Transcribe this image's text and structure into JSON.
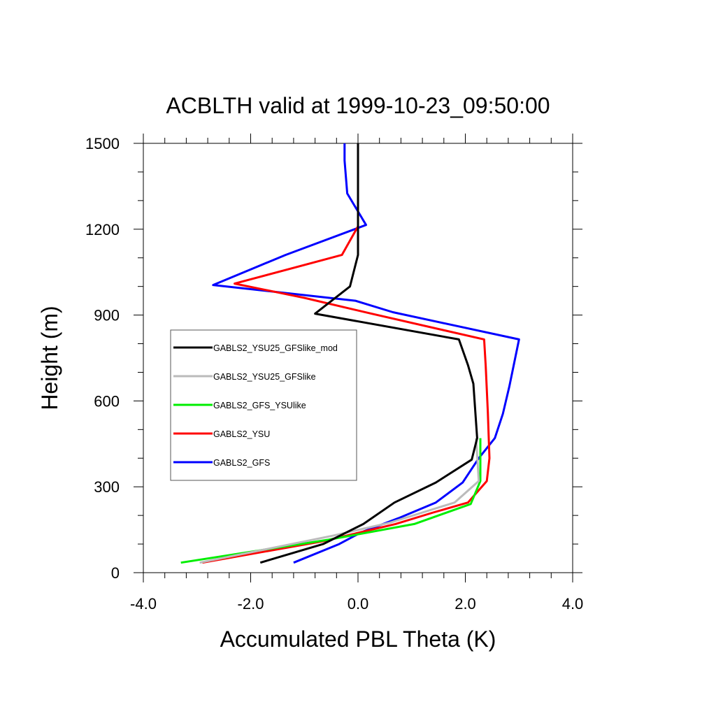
{
  "chart_data": {
    "type": "line",
    "title": "ACBLTH valid at 1999-10-23_09:50:00",
    "xlabel": "Accumulated PBL Theta (K)",
    "ylabel": "Height (m)",
    "xlim": [
      -4.0,
      4.0
    ],
    "ylim": [
      0,
      1500
    ],
    "xticks": [
      -4.0,
      -2.0,
      0.0,
      2.0,
      4.0
    ],
    "xtick_labels": [
      "-4.0",
      "-2.0",
      "0.0",
      "2.0",
      "4.0"
    ],
    "yticks": [
      0,
      300,
      600,
      900,
      1200,
      1500
    ],
    "ytick_labels": [
      "0",
      "300",
      "600",
      "900",
      "1200",
      "1500"
    ],
    "grid": false,
    "legend_position": "left-center",
    "series": [
      {
        "name": "GABLS2_GFS",
        "color": "#0000ff",
        "points": [
          [
            -1.2,
            35
          ],
          [
            -0.35,
            100
          ],
          [
            0.05,
            140
          ],
          [
            0.75,
            190
          ],
          [
            1.45,
            245
          ],
          [
            1.95,
            315
          ],
          [
            2.25,
            400
          ],
          [
            2.55,
            470
          ],
          [
            2.7,
            555
          ],
          [
            2.82,
            650
          ],
          [
            3.0,
            815
          ],
          [
            0.65,
            910
          ],
          [
            -0.05,
            950
          ],
          [
            -2.7,
            1005
          ],
          [
            -1.35,
            1110
          ],
          [
            0.15,
            1215
          ],
          [
            -0.2,
            1325
          ],
          [
            -0.25,
            1440
          ],
          [
            -0.25,
            1500
          ]
        ]
      },
      {
        "name": "GABLS2_YSU",
        "color": "#ff0000",
        "points": [
          [
            -2.9,
            35
          ],
          [
            -0.65,
            110
          ],
          [
            0.7,
            170
          ],
          [
            1.4,
            210
          ],
          [
            2.05,
            245
          ],
          [
            2.4,
            320
          ],
          [
            2.45,
            400
          ],
          [
            2.42,
            560
          ],
          [
            2.38,
            720
          ],
          [
            2.35,
            815
          ],
          [
            0.25,
            905
          ],
          [
            -1.0,
            960
          ],
          [
            -2.3,
            1010
          ],
          [
            -0.3,
            1110
          ],
          [
            0.0,
            1210
          ],
          [
            0.0,
            1500
          ]
        ]
      },
      {
        "name": "GABLS2_GFS_YSUlike",
        "color": "#00ee00",
        "points": [
          [
            -3.3,
            35
          ],
          [
            -0.55,
            115
          ],
          [
            1.05,
            170
          ],
          [
            2.1,
            240
          ],
          [
            2.28,
            320
          ],
          [
            2.28,
            470
          ]
        ]
      },
      {
        "name": "GABLS2_YSU25_GFSlike",
        "color": "#bbbbbb",
        "points": [
          [
            -2.95,
            35
          ],
          [
            -0.45,
            130
          ],
          [
            0.6,
            175
          ],
          [
            1.8,
            245
          ],
          [
            2.25,
            320
          ],
          [
            2.2,
            470
          ]
        ]
      },
      {
        "name": "GABLS2_YSU25_GFSlike_mod",
        "color": "#000000",
        "points": [
          [
            -1.82,
            35
          ],
          [
            -0.65,
            100
          ],
          [
            0.1,
            170
          ],
          [
            0.68,
            245
          ],
          [
            1.45,
            315
          ],
          [
            2.12,
            395
          ],
          [
            2.22,
            470
          ],
          [
            2.15,
            660
          ],
          [
            2.05,
            725
          ],
          [
            1.88,
            815
          ],
          [
            -0.8,
            905
          ],
          [
            -0.15,
            1000
          ],
          [
            0.0,
            1110
          ],
          [
            0.0,
            1500
          ]
        ]
      }
    ],
    "legend_order": [
      "GABLS2_YSU25_GFSlike_mod",
      "GABLS2_YSU25_GFSlike",
      "GABLS2_GFS_YSUlike",
      "GABLS2_YSU",
      "GABLS2_GFS"
    ]
  }
}
